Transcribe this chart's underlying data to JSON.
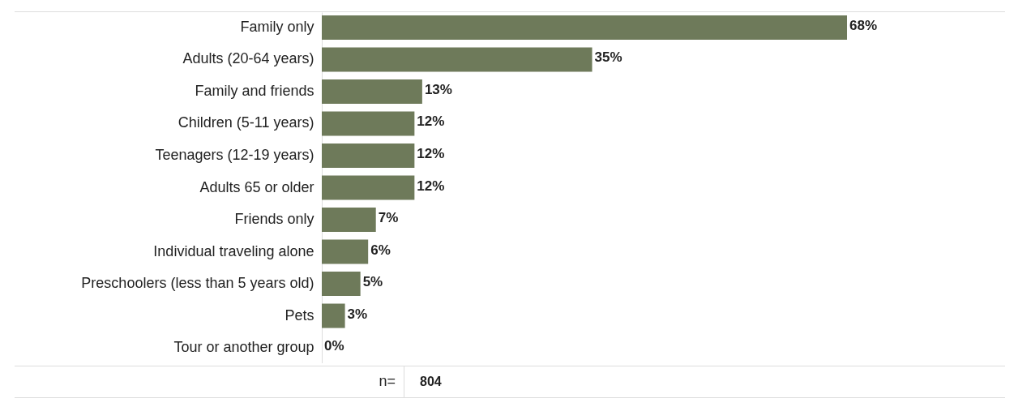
{
  "chart_data": {
    "type": "bar",
    "orientation": "horizontal",
    "categories": [
      "Family only",
      "Adults (20-64 years)",
      "Family and friends",
      "Children (5-11 years)",
      "Teenagers (12-19 years)",
      "Adults 65 or older",
      "Friends only",
      "Individual traveling alone",
      "Preschoolers (less than 5 years old)",
      "Pets",
      "Tour or another group"
    ],
    "values": [
      68,
      35,
      13,
      12,
      12,
      12,
      7,
      6,
      5,
      3,
      0
    ],
    "value_labels": [
      "68%",
      "35%",
      "13%",
      "12%",
      "12%",
      "12%",
      "7%",
      "6%",
      "5%",
      "3%",
      "0%"
    ],
    "color": "#6e7a5a",
    "annotations": [
      "n=",
      "804"
    ]
  }
}
